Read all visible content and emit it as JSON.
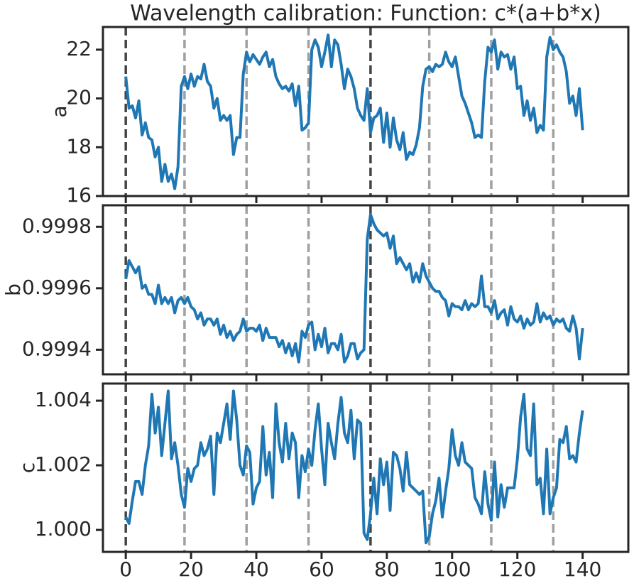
{
  "chart_data": [
    {
      "type": "line",
      "title": "Wavelength calibration: Function: c*(a+b*x)",
      "ylabel": "a",
      "color": "#1f77b4",
      "show_xtick_labels": false,
      "xlim": [
        -7,
        154
      ],
      "xticks": [
        0,
        20,
        40,
        60,
        80,
        100,
        120,
        140
      ],
      "ylim": [
        16,
        22.93
      ],
      "yticks": [
        16,
        18,
        20,
        22
      ],
      "vlines": [
        0,
        18,
        37,
        56,
        75,
        93,
        112,
        131
      ],
      "major_vlines": [
        0,
        75
      ],
      "x": [
        0,
        1,
        2,
        3,
        4,
        5,
        6,
        7,
        8,
        9,
        10,
        11,
        12,
        13,
        14,
        15,
        16,
        17,
        18,
        19,
        20,
        21,
        22,
        23,
        24,
        25,
        26,
        27,
        28,
        29,
        30,
        31,
        32,
        33,
        34,
        35,
        36,
        37,
        38,
        39,
        40,
        41,
        42,
        43,
        44,
        45,
        46,
        47,
        48,
        49,
        50,
        51,
        52,
        53,
        54,
        55,
        56,
        57,
        58,
        59,
        60,
        61,
        62,
        63,
        64,
        65,
        66,
        67,
        68,
        69,
        70,
        71,
        72,
        73,
        74,
        75,
        76,
        77,
        78,
        79,
        80,
        81,
        82,
        83,
        84,
        85,
        86,
        87,
        88,
        89,
        90,
        91,
        92,
        93,
        94,
        95,
        96,
        97,
        98,
        99,
        100,
        101,
        102,
        103,
        104,
        105,
        106,
        107,
        108,
        109,
        110,
        111,
        112,
        113,
        114,
        115,
        116,
        117,
        118,
        119,
        120,
        121,
        122,
        123,
        124,
        125,
        126,
        127,
        128,
        129,
        130,
        131,
        132,
        133,
        134,
        135,
        136,
        137,
        138,
        139,
        140
      ],
      "values": [
        20.9,
        19.6,
        19.7,
        19.2,
        19.9,
        18.5,
        19.0,
        18.4,
        18.3,
        17.6,
        18.0,
        16.6,
        17.3,
        16.6,
        16.9,
        16.3,
        17.2,
        20.5,
        20.9,
        20.4,
        21.0,
        20.5,
        20.9,
        20.8,
        21.4,
        20.7,
        20.5,
        19.6,
        20.0,
        19.1,
        19.3,
        19.1,
        19.3,
        17.7,
        18.4,
        18.4,
        21.0,
        21.9,
        21.5,
        21.8,
        21.6,
        21.4,
        21.7,
        21.9,
        21.3,
        21.6,
        20.9,
        20.6,
        20.4,
        20.5,
        20.3,
        20.6,
        19.7,
        20.5,
        18.7,
        18.8,
        19.0,
        22.0,
        22.4,
        22.1,
        21.3,
        21.9,
        22.6,
        21.3,
        22.4,
        22.2,
        21.4,
        20.4,
        21.2,
        20.9,
        20.4,
        19.6,
        19.3,
        19.1,
        20.4,
        18.6,
        19.2,
        19.3,
        19.6,
        18.2,
        19.4,
        18.0,
        19.2,
        18.3,
        17.9,
        18.6,
        17.5,
        17.8,
        17.7,
        18.1,
        18.8,
        20.5,
        21.2,
        21.3,
        21.1,
        21.4,
        21.3,
        21.4,
        21.9,
        21.5,
        21.3,
        21.7,
        20.9,
        20.1,
        19.8,
        19.4,
        19.0,
        18.4,
        18.5,
        18.4,
        20.7,
        22.1,
        21.9,
        22.4,
        21.2,
        21.9,
        21.7,
        21.8,
        21.2,
        21.7,
        20.4,
        20.5,
        19.3,
        19.9,
        19.1,
        19.6,
        18.6,
        18.9,
        18.7,
        21.7,
        22.5,
        22.0,
        22.2,
        21.9,
        21.7,
        21.1,
        19.8,
        20.1,
        19.3,
        20.4,
        18.7
      ]
    },
    {
      "type": "line",
      "ylabel": "b",
      "color": "#1f77b4",
      "show_xtick_labels": false,
      "xlim": [
        -7,
        154
      ],
      "xticks": [
        0,
        20,
        40,
        60,
        80,
        100,
        120,
        140
      ],
      "ylim": [
        0.99932,
        0.99987
      ],
      "yticks": [
        0.9994,
        0.9996,
        0.9998
      ],
      "vlines": [
        0,
        18,
        37,
        56,
        75,
        93,
        112,
        131
      ],
      "major_vlines": [
        0,
        75
      ],
      "x": [
        0,
        1,
        2,
        3,
        4,
        5,
        6,
        7,
        8,
        9,
        10,
        11,
        12,
        13,
        14,
        15,
        16,
        17,
        18,
        19,
        20,
        21,
        22,
        23,
        24,
        25,
        26,
        27,
        28,
        29,
        30,
        31,
        32,
        33,
        34,
        35,
        36,
        37,
        38,
        39,
        40,
        41,
        42,
        43,
        44,
        45,
        46,
        47,
        48,
        49,
        50,
        51,
        52,
        53,
        54,
        55,
        56,
        57,
        58,
        59,
        60,
        61,
        62,
        63,
        64,
        65,
        66,
        67,
        68,
        69,
        70,
        71,
        72,
        73,
        74,
        75,
        76,
        77,
        78,
        79,
        80,
        81,
        82,
        83,
        84,
        85,
        86,
        87,
        88,
        89,
        90,
        91,
        92,
        93,
        94,
        95,
        96,
        97,
        98,
        99,
        100,
        101,
        102,
        103,
        104,
        105,
        106,
        107,
        108,
        109,
        110,
        111,
        112,
        113,
        114,
        115,
        116,
        117,
        118,
        119,
        120,
        121,
        122,
        123,
        124,
        125,
        126,
        127,
        128,
        129,
        130,
        131,
        132,
        133,
        134,
        135,
        136,
        137,
        138,
        139,
        140
      ],
      "values": [
        0.99963,
        0.99969,
        0.99967,
        0.99965,
        0.99967,
        0.9996,
        0.99961,
        0.99958,
        0.99958,
        0.99955,
        0.99961,
        0.99955,
        0.99957,
        0.99955,
        0.99957,
        0.99952,
        0.99956,
        0.99957,
        0.99955,
        0.99957,
        0.99954,
        0.99953,
        0.9995,
        0.99952,
        0.99948,
        0.9995,
        0.9995,
        0.99948,
        0.9995,
        0.99945,
        0.99948,
        0.99944,
        0.99946,
        0.99943,
        0.99945,
        0.99946,
        0.9995,
        0.99946,
        0.99947,
        0.99947,
        0.99946,
        0.99948,
        0.99943,
        0.99947,
        0.99944,
        0.99944,
        0.99944,
        0.99941,
        0.99943,
        0.99939,
        0.99942,
        0.99938,
        0.99942,
        0.99936,
        0.99946,
        0.99944,
        0.99948,
        0.99949,
        0.9994,
        0.99945,
        0.99941,
        0.99947,
        0.99939,
        0.99942,
        0.99942,
        0.9994,
        0.99945,
        0.99936,
        0.99938,
        0.99942,
        0.99942,
        0.99937,
        0.99939,
        0.9994,
        0.99976,
        0.99984,
        0.99981,
        0.99979,
        0.99978,
        0.99977,
        0.99978,
        0.99973,
        0.99977,
        0.99968,
        0.9997,
        0.99968,
        0.99966,
        0.99968,
        0.99962,
        0.99965,
        0.99962,
        0.99968,
        0.99964,
        0.99962,
        0.9996,
        0.99959,
        0.99959,
        0.99957,
        0.99956,
        0.99951,
        0.99955,
        0.99954,
        0.99954,
        0.99953,
        0.99956,
        0.99953,
        0.99955,
        0.99954,
        0.99955,
        0.99964,
        0.99954,
        0.99954,
        0.99952,
        0.99956,
        0.9995,
        0.99952,
        0.99953,
        0.99948,
        0.99954,
        0.9995,
        0.99949,
        0.99951,
        0.99947,
        0.9995,
        0.99948,
        0.99949,
        0.99955,
        0.99949,
        0.99952,
        0.9995,
        0.99951,
        0.99948,
        0.9995,
        0.99949,
        0.9995,
        0.99947,
        0.99946,
        0.99951,
        0.99947,
        0.99937,
        0.99947
      ]
    },
    {
      "type": "line",
      "ylabel": "c",
      "color": "#1f77b4",
      "show_xtick_labels": true,
      "xlim": [
        -7,
        154
      ],
      "xticks": [
        0,
        20,
        40,
        60,
        80,
        100,
        120,
        140
      ],
      "ylim": [
        0.99932,
        1.00453
      ],
      "yticks": [
        {
          "value": 1.0,
          "label": "1.000"
        },
        1.002,
        1.004
      ],
      "vlines": [
        0,
        18,
        37,
        56,
        75,
        93,
        112,
        131
      ],
      "major_vlines": [
        0,
        75
      ],
      "x": [
        0,
        1,
        2,
        3,
        4,
        5,
        6,
        7,
        8,
        9,
        10,
        11,
        12,
        13,
        14,
        15,
        16,
        17,
        18,
        19,
        20,
        21,
        22,
        23,
        24,
        25,
        26,
        27,
        28,
        29,
        30,
        31,
        32,
        33,
        34,
        35,
        36,
        37,
        38,
        39,
        40,
        41,
        42,
        43,
        44,
        45,
        46,
        47,
        48,
        49,
        50,
        51,
        52,
        53,
        54,
        55,
        56,
        57,
        58,
        59,
        60,
        61,
        62,
        63,
        64,
        65,
        66,
        67,
        68,
        69,
        70,
        71,
        72,
        73,
        74,
        75,
        76,
        77,
        78,
        79,
        80,
        81,
        82,
        83,
        84,
        85,
        86,
        87,
        88,
        89,
        90,
        91,
        92,
        93,
        94,
        95,
        96,
        97,
        98,
        99,
        100,
        101,
        102,
        103,
        104,
        105,
        106,
        107,
        108,
        109,
        110,
        111,
        112,
        113,
        114,
        115,
        116,
        117,
        118,
        119,
        120,
        121,
        122,
        123,
        124,
        125,
        126,
        127,
        128,
        129,
        130,
        131,
        132,
        133,
        134,
        135,
        136,
        137,
        138,
        139,
        140
      ],
      "values": [
        1.0004,
        1.0002,
        1.0009,
        1.0015,
        1.0015,
        1.0011,
        1.002,
        1.0026,
        1.0042,
        1.003,
        1.0038,
        1.0023,
        1.0033,
        1.0043,
        1.0022,
        1.0027,
        1.002,
        1.0011,
        1.0007,
        1.0019,
        1.0015,
        1.0019,
        1.002,
        1.0027,
        1.0023,
        1.0025,
        1.0029,
        1.0011,
        1.003,
        1.0027,
        1.0033,
        1.0039,
        1.0028,
        1.0043,
        1.0034,
        1.002,
        1.0017,
        1.0026,
        1.0024,
        1.0008,
        1.0013,
        1.0015,
        1.0032,
        1.0017,
        1.0024,
        1.001,
        1.0039,
        1.0027,
        1.0021,
        1.0033,
        1.0022,
        1.003,
        1.0027,
        1.001,
        1.0023,
        1.0018,
        1.0025,
        1.002,
        1.0031,
        1.0039,
        1.0025,
        1.0014,
        1.0033,
        1.0027,
        1.0022,
        1.0033,
        1.0041,
        1.003,
        1.0027,
        1.0037,
        1.0022,
        1.0034,
        1.0033,
        0.9999,
        0.9997,
        1.0005,
        1.0016,
        1.0005,
        1.0022,
        1.0014,
        1.0021,
        1.0006,
        1.0024,
        1.0023,
        1.0019,
        1.0012,
        1.0024,
        1.0014,
        1.0013,
        1.0012,
        1.0011,
        1.0012,
        0.9996,
        0.9998,
        1.0005,
        1.0009,
        1.0016,
        1.0004,
        1.0012,
        1.0019,
        1.0031,
        1.0023,
        1.002,
        1.0027,
        1.0021,
        1.002,
        1.0019,
        1.001,
        1.0008,
        1.0005,
        1.0018,
        1.0008,
        1.0003,
        1.0021,
        1.0004,
        1.0014,
        1.0007,
        1.0013,
        1.0013,
        1.0013,
        1.0022,
        1.0035,
        1.0042,
        1.0025,
        1.0023,
        1.0039,
        1.0014,
        1.0016,
        1.0005,
        1.0025,
        1.0005,
        1.001,
        1.0013,
        1.0028,
        1.0027,
        1.0032,
        1.0022,
        1.0023,
        1.0021,
        1.003,
        1.0037
      ]
    }
  ]
}
